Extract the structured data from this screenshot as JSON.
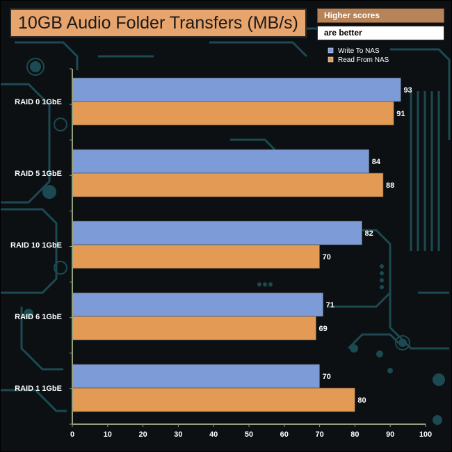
{
  "header": {
    "title": "10GB Audio Folder Transfers (MB/s)",
    "note_line1": "Higher scores",
    "note_line2": "are better"
  },
  "colors": {
    "write": "#7d9bd6",
    "read": "#e29a54",
    "axis": "#93a07e",
    "background": "#0c1012",
    "circuit": "#1b4a52"
  },
  "chart_data": {
    "type": "bar",
    "orientation": "horizontal",
    "title": "10GB Audio Folder Transfers (MB/s)",
    "categories": [
      "RAID 0 1GbE",
      "RAID 5 1GbE",
      "RAID 10 1GbE",
      "RAID 6 1GbE",
      "RAID 1 1GbE"
    ],
    "series": [
      {
        "name": "Write To NAS",
        "values": [
          93,
          84,
          82,
          71,
          70
        ]
      },
      {
        "name": "Read From NAS",
        "values": [
          91,
          88,
          70,
          69,
          80
        ]
      }
    ],
    "xlim": [
      0,
      100
    ],
    "xticks": [
      0,
      10,
      20,
      30,
      40,
      50,
      60,
      70,
      80,
      90,
      100
    ],
    "grid": false,
    "legend_position": "top-right"
  }
}
